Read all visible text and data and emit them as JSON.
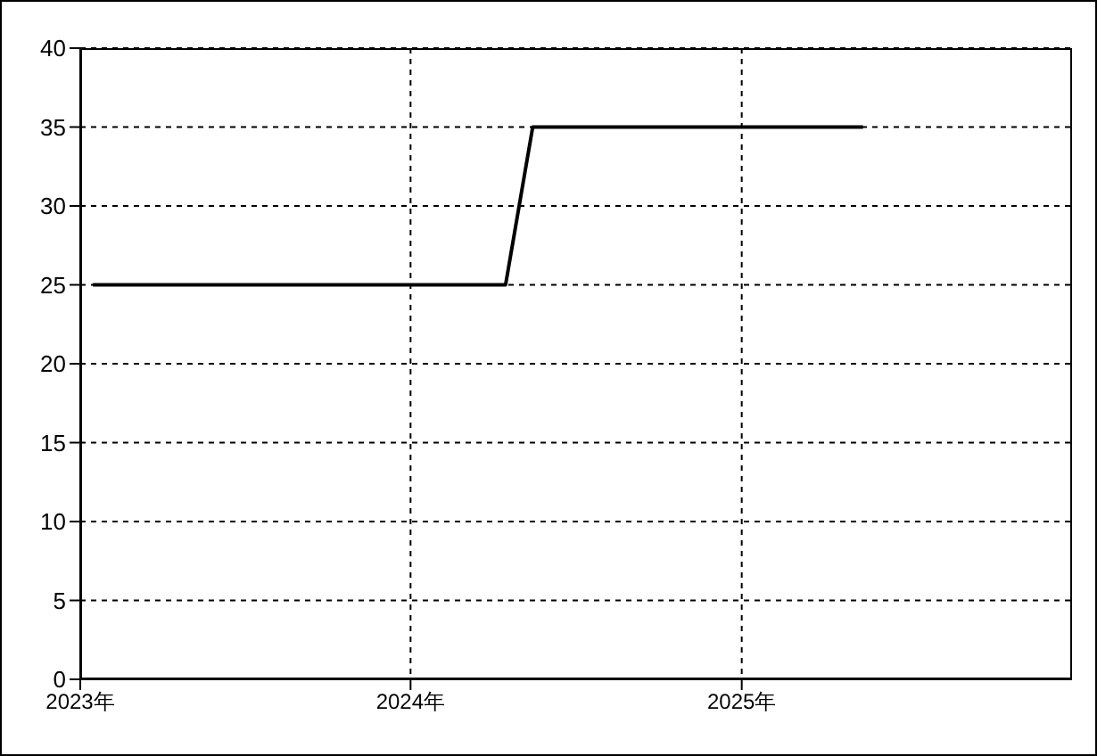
{
  "chart_data": {
    "type": "line",
    "x": [
      "2023-01-15",
      "2024-04-15",
      "2024-05-15",
      "2025-05-15"
    ],
    "series": [
      {
        "color": "#000000",
        "values": [
          25,
          25,
          35,
          35
        ]
      }
    ],
    "xlim": [
      "2023-01-01",
      "2026-01-01"
    ],
    "xticks": [
      {
        "value": "2023-01-01",
        "label": "2023年"
      },
      {
        "value": "2024-01-01",
        "label": "2024年"
      },
      {
        "value": "2025-01-01",
        "label": "2025年"
      }
    ],
    "ylim": [
      0,
      40
    ],
    "yticks": [
      0,
      5,
      10,
      15,
      20,
      25,
      30,
      35,
      40
    ],
    "grid": true,
    "marker": "none",
    "line_style": "solid"
  }
}
